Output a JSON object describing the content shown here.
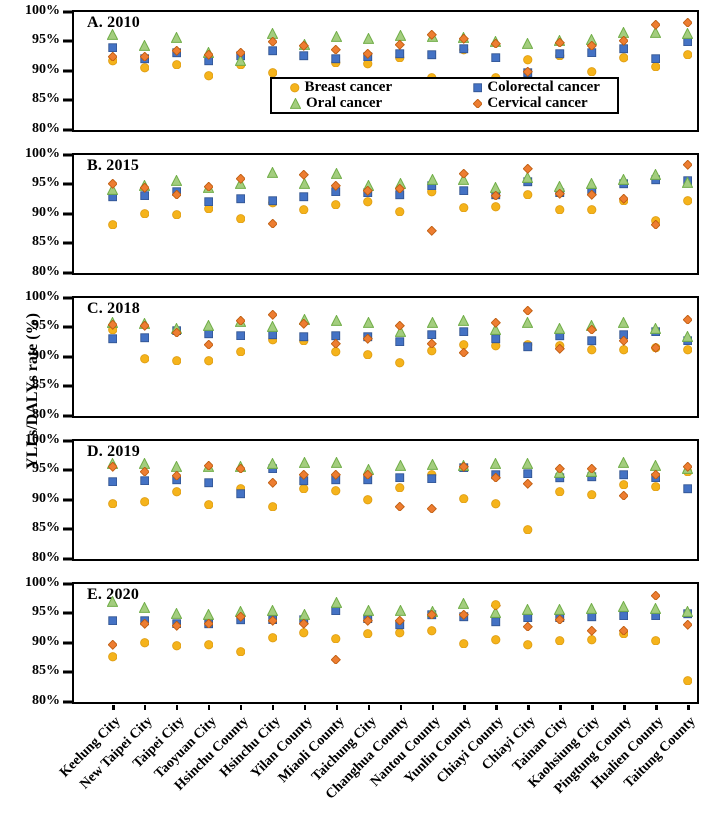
{
  "figure": {
    "y_axis_title": "YLLs/DALYs rate (%)"
  },
  "legend": {
    "items": [
      {
        "series": "breast",
        "label": "Breast cancer"
      },
      {
        "series": "colorectal",
        "label": "Colorectal cancer"
      },
      {
        "series": "oral",
        "label": "Oral cancer"
      },
      {
        "series": "cervical",
        "label": "Cervical cancer"
      }
    ]
  },
  "chart_data": {
    "type": "scatter",
    "title": "",
    "xlabel": "",
    "ylabel": "YLLs/DALYs rate (%)",
    "y_axis": {
      "min": 80,
      "max": 100,
      "tick_values": [
        100,
        95,
        90,
        85,
        80
      ],
      "tick_labels": [
        "100%",
        "95%",
        "90%",
        "85%",
        "80%"
      ],
      "unit": "%"
    },
    "grid": false,
    "legend_position": "inside panel A bottom-right",
    "categories": [
      "Keelung City",
      "New Taipei City",
      "Taipei City",
      "Taoyuan City",
      "Hsinchu County",
      "Hsinchu City",
      "Yilan County",
      "Miaoli County",
      "Taichung City",
      "Changhua County",
      "Nantou County",
      "Yunlin County",
      "Chiayi County",
      "Chiayi City",
      "Tainan City",
      "Kaohsiung City",
      "Pingtung County",
      "Hualien County",
      "Taitung County"
    ],
    "series_meta": [
      {
        "key": "breast",
        "label": "Breast cancer",
        "marker": "circle",
        "fill": "#F5B31B",
        "stroke": "#DF9E14"
      },
      {
        "key": "colorectal",
        "label": "Colorectal cancer",
        "marker": "square",
        "fill": "#4472C4",
        "stroke": "#31538F"
      },
      {
        "key": "oral",
        "label": "Oral cancer",
        "marker": "triangle",
        "fill": "#A3CD7E",
        "stroke": "#70AD47"
      },
      {
        "key": "cervical",
        "label": "Cervical cancer",
        "marker": "diamond",
        "fill": "#ED7D31",
        "stroke": "#BC5A0C"
      }
    ],
    "panels": [
      {
        "label": "A. 2010",
        "year": 2010,
        "series": {
          "breast": [
            91.3,
            90.1,
            90.7,
            88.7,
            90.7,
            89.3,
            87.5,
            91.0,
            90.8,
            91.9,
            88.5,
            93.1,
            88.5,
            91.4,
            92.2,
            89.5,
            91.8,
            90.3,
            92.4
          ],
          "colorectal": [
            93.6,
            91.6,
            92.6,
            91.3,
            92.1,
            93.0,
            92.1,
            91.6,
            92.0,
            92.5,
            92.3,
            93.3,
            91.9,
            89.3,
            92.5,
            92.7,
            93.3,
            91.7,
            94.6
          ],
          "oral": [
            95.6,
            93.8,
            95.2,
            92.6,
            91.3,
            95.8,
            94.0,
            95.4,
            95.0,
            95.5,
            95.3,
            95.2,
            94.5,
            94.2,
            94.6,
            94.8,
            96.1,
            96.0,
            95.8
          ],
          "cervical": [
            92.0,
            92.0,
            93.0,
            92.3,
            92.7,
            94.6,
            93.8,
            93.2,
            92.5,
            94.0,
            95.7,
            95.0,
            94.2,
            89.4,
            94.4,
            93.9,
            94.7,
            97.4,
            97.8
          ]
        }
      },
      {
        "label": "B. 2015",
        "year": 2015,
        "series": {
          "breast": [
            87.8,
            89.7,
            89.5,
            90.5,
            88.8,
            91.4,
            90.3,
            91.2,
            91.6,
            90.0,
            93.3,
            90.7,
            90.8,
            92.9,
            90.3,
            90.3,
            91.9,
            88.5,
            91.8
          ],
          "colorectal": [
            92.5,
            92.7,
            93.4,
            91.7,
            92.1,
            91.8,
            92.5,
            93.4,
            93.2,
            92.8,
            94.4,
            93.6,
            92.8,
            95.0,
            93.2,
            93.5,
            94.7,
            95.3,
            95.2
          ],
          "oral": [
            93.6,
            94.3,
            95.2,
            93.9,
            94.6,
            96.5,
            94.7,
            96.3,
            94.4,
            94.7,
            95.3,
            95.3,
            94.0,
            95.7,
            94.1,
            94.7,
            95.4,
            96.2,
            94.8
          ],
          "cervical": [
            94.7,
            94.0,
            92.9,
            94.2,
            95.5,
            88.0,
            96.2,
            94.3,
            93.5,
            93.9,
            86.7,
            96.4,
            92.7,
            97.2,
            93.0,
            92.8,
            92.1,
            87.8,
            97.9
          ]
        }
      },
      {
        "label": "C. 2018",
        "year": 2018,
        "series": {
          "breast": [
            94.2,
            89.2,
            89.0,
            88.9,
            90.5,
            92.5,
            92.4,
            90.4,
            90.0,
            88.6,
            90.6,
            91.7,
            91.4,
            91.6,
            91.5,
            90.8,
            90.8,
            91.2,
            90.8
          ],
          "colorectal": [
            92.6,
            92.8,
            94.1,
            93.5,
            93.2,
            93.3,
            93.0,
            93.1,
            93.0,
            92.2,
            93.4,
            93.9,
            92.6,
            91.3,
            93.1,
            92.3,
            93.4,
            93.9,
            92.4
          ],
          "oral": [
            95.4,
            95.2,
            94.3,
            94.9,
            95.5,
            94.7,
            95.8,
            95.6,
            95.4,
            93.8,
            95.3,
            95.6,
            94.2,
            95.3,
            94.4,
            94.9,
            95.3,
            94.3,
            93.0
          ],
          "cervical": [
            95.0,
            94.8,
            93.7,
            91.7,
            95.8,
            96.7,
            95.2,
            91.9,
            92.6,
            94.9,
            91.9,
            90.3,
            95.3,
            97.5,
            90.9,
            94.2,
            92.3,
            91.1,
            95.9
          ]
        }
      },
      {
        "label": "D. 2019",
        "year": 2019,
        "series": {
          "breast": [
            89.0,
            89.2,
            90.9,
            88.8,
            91.4,
            88.5,
            91.5,
            91.1,
            89.6,
            91.7,
            93.8,
            89.8,
            88.9,
            84.6,
            91.0,
            90.5,
            92.2,
            91.9,
            94.4
          ],
          "colorectal": [
            92.7,
            92.9,
            93.0,
            92.5,
            90.6,
            94.9,
            92.8,
            93.0,
            93.0,
            93.4,
            93.2,
            95.1,
            93.8,
            94.1,
            93.3,
            93.5,
            93.8,
            93.4,
            91.4
          ],
          "oral": [
            95.6,
            95.7,
            95.2,
            95.2,
            95.1,
            95.7,
            95.8,
            95.8,
            94.6,
            95.4,
            95.5,
            95.4,
            95.7,
            95.7,
            94.2,
            94.3,
            95.9,
            95.4,
            94.9
          ],
          "cervical": [
            95.2,
            94.4,
            93.7,
            95.4,
            94.9,
            92.5,
            93.8,
            93.8,
            93.9,
            88.5,
            88.1,
            95.2,
            93.4,
            92.3,
            94.9,
            94.9,
            90.3,
            93.9,
            95.2
          ]
        }
      },
      {
        "label": "E. 2020",
        "year": 2020,
        "series": {
          "breast": [
            87.2,
            89.6,
            89.1,
            89.2,
            88.1,
            90.4,
            91.3,
            90.3,
            91.2,
            91.3,
            91.6,
            89.5,
            90.1,
            89.2,
            90.0,
            90.1,
            91.2,
            90.0,
            83.2
          ],
          "colorectal": [
            93.4,
            93.3,
            92.9,
            92.8,
            93.5,
            93.6,
            93.5,
            95.1,
            93.7,
            92.6,
            94.3,
            94.0,
            93.1,
            93.9,
            93.9,
            94.0,
            94.2,
            94.2,
            94.5
          ],
          "oral": [
            96.6,
            95.5,
            94.5,
            94.4,
            94.9,
            95.0,
            94.4,
            96.4,
            95.0,
            95.0,
            94.9,
            96.2,
            94.6,
            95.2,
            95.2,
            95.4,
            95.6,
            95.4,
            94.8
          ],
          "cervical": [
            89.2,
            92.8,
            92.5,
            92.9,
            94.0,
            93.3,
            92.8,
            86.8,
            93.3,
            93.4,
            94.4,
            94.3,
            95.9,
            92.4,
            93.6,
            91.6,
            91.7,
            97.6,
            92.6
          ]
        }
      }
    ],
    "extra_points": [
      {
        "panel_index": 4,
        "category_index": 12,
        "series": "breast",
        "value": 96.0,
        "note": "second yellow circle above cluster at Chiayi County, panel E"
      }
    ]
  }
}
